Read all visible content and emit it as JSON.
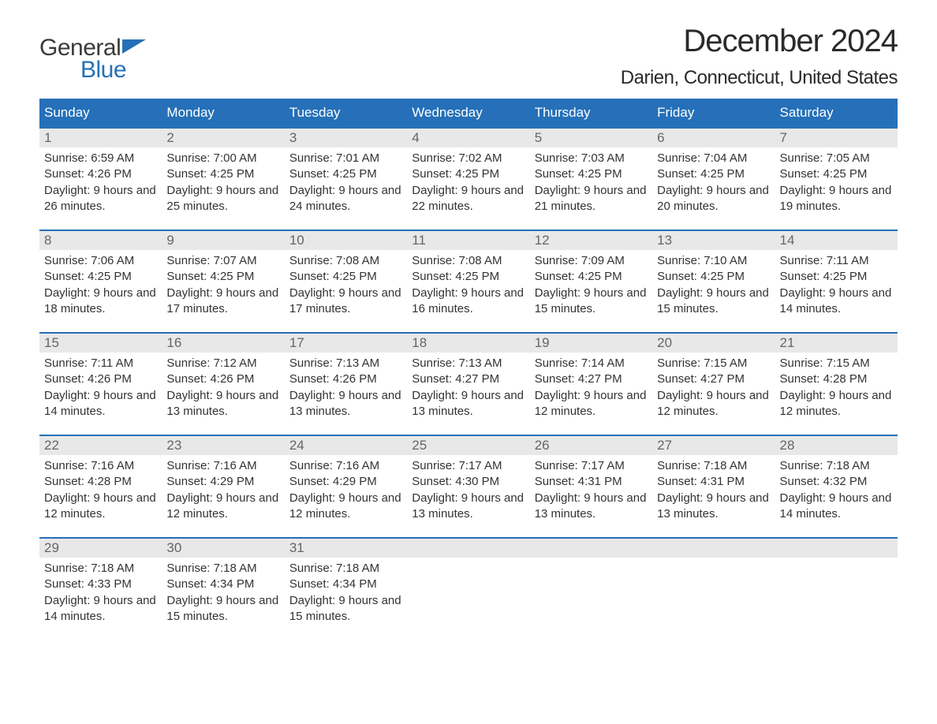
{
  "logo": {
    "text1": "General",
    "text2": "Blue"
  },
  "title": "December 2024",
  "location": "Darien, Connecticut, United States",
  "colors": {
    "header_bg": "#2570b8",
    "header_text": "#ffffff",
    "daynum_bg": "#e8e8e8",
    "daynum_text": "#666666",
    "body_text": "#333333",
    "week_border": "#2570b8",
    "logo_blue": "#2570b8",
    "logo_gray": "#3a3a3a",
    "page_bg": "#ffffff"
  },
  "typography": {
    "title_fontsize": 40,
    "location_fontsize": 24,
    "header_fontsize": 17,
    "daynum_fontsize": 17,
    "body_fontsize": 15,
    "logo_fontsize": 30,
    "font_family": "Arial"
  },
  "layout": {
    "columns": 7,
    "rows": 5,
    "cell_min_height": 128
  },
  "day_headers": [
    "Sunday",
    "Monday",
    "Tuesday",
    "Wednesday",
    "Thursday",
    "Friday",
    "Saturday"
  ],
  "weeks": [
    [
      {
        "num": "1",
        "sunrise": "Sunrise: 6:59 AM",
        "sunset": "Sunset: 4:26 PM",
        "daylight": "Daylight: 9 hours and 26 minutes."
      },
      {
        "num": "2",
        "sunrise": "Sunrise: 7:00 AM",
        "sunset": "Sunset: 4:25 PM",
        "daylight": "Daylight: 9 hours and 25 minutes."
      },
      {
        "num": "3",
        "sunrise": "Sunrise: 7:01 AM",
        "sunset": "Sunset: 4:25 PM",
        "daylight": "Daylight: 9 hours and 24 minutes."
      },
      {
        "num": "4",
        "sunrise": "Sunrise: 7:02 AM",
        "sunset": "Sunset: 4:25 PM",
        "daylight": "Daylight: 9 hours and 22 minutes."
      },
      {
        "num": "5",
        "sunrise": "Sunrise: 7:03 AM",
        "sunset": "Sunset: 4:25 PM",
        "daylight": "Daylight: 9 hours and 21 minutes."
      },
      {
        "num": "6",
        "sunrise": "Sunrise: 7:04 AM",
        "sunset": "Sunset: 4:25 PM",
        "daylight": "Daylight: 9 hours and 20 minutes."
      },
      {
        "num": "7",
        "sunrise": "Sunrise: 7:05 AM",
        "sunset": "Sunset: 4:25 PM",
        "daylight": "Daylight: 9 hours and 19 minutes."
      }
    ],
    [
      {
        "num": "8",
        "sunrise": "Sunrise: 7:06 AM",
        "sunset": "Sunset: 4:25 PM",
        "daylight": "Daylight: 9 hours and 18 minutes."
      },
      {
        "num": "9",
        "sunrise": "Sunrise: 7:07 AM",
        "sunset": "Sunset: 4:25 PM",
        "daylight": "Daylight: 9 hours and 17 minutes."
      },
      {
        "num": "10",
        "sunrise": "Sunrise: 7:08 AM",
        "sunset": "Sunset: 4:25 PM",
        "daylight": "Daylight: 9 hours and 17 minutes."
      },
      {
        "num": "11",
        "sunrise": "Sunrise: 7:08 AM",
        "sunset": "Sunset: 4:25 PM",
        "daylight": "Daylight: 9 hours and 16 minutes."
      },
      {
        "num": "12",
        "sunrise": "Sunrise: 7:09 AM",
        "sunset": "Sunset: 4:25 PM",
        "daylight": "Daylight: 9 hours and 15 minutes."
      },
      {
        "num": "13",
        "sunrise": "Sunrise: 7:10 AM",
        "sunset": "Sunset: 4:25 PM",
        "daylight": "Daylight: 9 hours and 15 minutes."
      },
      {
        "num": "14",
        "sunrise": "Sunrise: 7:11 AM",
        "sunset": "Sunset: 4:25 PM",
        "daylight": "Daylight: 9 hours and 14 minutes."
      }
    ],
    [
      {
        "num": "15",
        "sunrise": "Sunrise: 7:11 AM",
        "sunset": "Sunset: 4:26 PM",
        "daylight": "Daylight: 9 hours and 14 minutes."
      },
      {
        "num": "16",
        "sunrise": "Sunrise: 7:12 AM",
        "sunset": "Sunset: 4:26 PM",
        "daylight": "Daylight: 9 hours and 13 minutes."
      },
      {
        "num": "17",
        "sunrise": "Sunrise: 7:13 AM",
        "sunset": "Sunset: 4:26 PM",
        "daylight": "Daylight: 9 hours and 13 minutes."
      },
      {
        "num": "18",
        "sunrise": "Sunrise: 7:13 AM",
        "sunset": "Sunset: 4:27 PM",
        "daylight": "Daylight: 9 hours and 13 minutes."
      },
      {
        "num": "19",
        "sunrise": "Sunrise: 7:14 AM",
        "sunset": "Sunset: 4:27 PM",
        "daylight": "Daylight: 9 hours and 12 minutes."
      },
      {
        "num": "20",
        "sunrise": "Sunrise: 7:15 AM",
        "sunset": "Sunset: 4:27 PM",
        "daylight": "Daylight: 9 hours and 12 minutes."
      },
      {
        "num": "21",
        "sunrise": "Sunrise: 7:15 AM",
        "sunset": "Sunset: 4:28 PM",
        "daylight": "Daylight: 9 hours and 12 minutes."
      }
    ],
    [
      {
        "num": "22",
        "sunrise": "Sunrise: 7:16 AM",
        "sunset": "Sunset: 4:28 PM",
        "daylight": "Daylight: 9 hours and 12 minutes."
      },
      {
        "num": "23",
        "sunrise": "Sunrise: 7:16 AM",
        "sunset": "Sunset: 4:29 PM",
        "daylight": "Daylight: 9 hours and 12 minutes."
      },
      {
        "num": "24",
        "sunrise": "Sunrise: 7:16 AM",
        "sunset": "Sunset: 4:29 PM",
        "daylight": "Daylight: 9 hours and 12 minutes."
      },
      {
        "num": "25",
        "sunrise": "Sunrise: 7:17 AM",
        "sunset": "Sunset: 4:30 PM",
        "daylight": "Daylight: 9 hours and 13 minutes."
      },
      {
        "num": "26",
        "sunrise": "Sunrise: 7:17 AM",
        "sunset": "Sunset: 4:31 PM",
        "daylight": "Daylight: 9 hours and 13 minutes."
      },
      {
        "num": "27",
        "sunrise": "Sunrise: 7:18 AM",
        "sunset": "Sunset: 4:31 PM",
        "daylight": "Daylight: 9 hours and 13 minutes."
      },
      {
        "num": "28",
        "sunrise": "Sunrise: 7:18 AM",
        "sunset": "Sunset: 4:32 PM",
        "daylight": "Daylight: 9 hours and 14 minutes."
      }
    ],
    [
      {
        "num": "29",
        "sunrise": "Sunrise: 7:18 AM",
        "sunset": "Sunset: 4:33 PM",
        "daylight": "Daylight: 9 hours and 14 minutes."
      },
      {
        "num": "30",
        "sunrise": "Sunrise: 7:18 AM",
        "sunset": "Sunset: 4:34 PM",
        "daylight": "Daylight: 9 hours and 15 minutes."
      },
      {
        "num": "31",
        "sunrise": "Sunrise: 7:18 AM",
        "sunset": "Sunset: 4:34 PM",
        "daylight": "Daylight: 9 hours and 15 minutes."
      },
      {
        "empty": true
      },
      {
        "empty": true
      },
      {
        "empty": true
      },
      {
        "empty": true
      }
    ]
  ]
}
